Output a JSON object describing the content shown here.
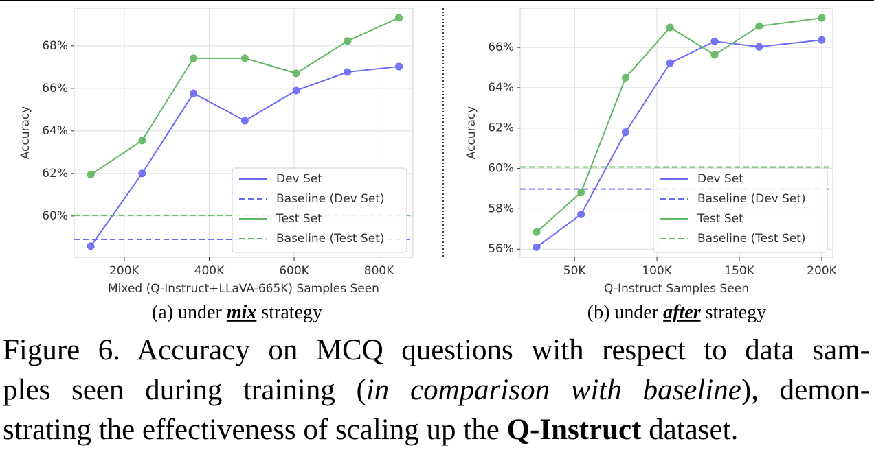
{
  "chart_data": [
    {
      "type": "line",
      "y_label": "Accuracy",
      "x_label": "Mixed (Q-Instruct+LLaVA-665K) Samples Seen",
      "x": [
        121000,
        242000,
        363000,
        484000,
        605000,
        726000,
        847000
      ],
      "xlim": [
        82000,
        880000
      ],
      "xticks": [
        {
          "value": 200000,
          "label": "200K"
        },
        {
          "value": 400000,
          "label": "400K"
        },
        {
          "value": 600000,
          "label": "600K"
        },
        {
          "value": 800000,
          "label": "800K"
        }
      ],
      "ylim": [
        58.06,
        69.77
      ],
      "yticks": [
        {
          "value": 60,
          "label": "60%"
        },
        {
          "value": 62,
          "label": "62%"
        },
        {
          "value": 64,
          "label": "64%"
        },
        {
          "value": 66,
          "label": "66%"
        },
        {
          "value": 68,
          "label": "68%"
        }
      ],
      "grid": true,
      "legend": "lower right",
      "series": [
        {
          "name": "Dev Set",
          "color": "#6b6bf2",
          "style": "solid",
          "values": [
            58.58,
            62.0,
            65.77,
            64.48,
            65.9,
            66.77,
            67.03
          ]
        },
        {
          "name": "Baseline (Dev Set)",
          "color": "#6b6bf2",
          "style": "dashed",
          "value": 58.9
        },
        {
          "name": "Test Set",
          "color": "#62b862",
          "style": "solid",
          "values": [
            61.94,
            63.55,
            67.42,
            67.42,
            66.71,
            68.23,
            69.32
          ]
        },
        {
          "name": "Baseline (Test Set)",
          "color": "#62b862",
          "style": "dashed",
          "value": 60.03
        }
      ]
    },
    {
      "type": "line",
      "y_label": "Accuracy",
      "x_label": "Q-Instruct Samples Seen",
      "x": [
        27000,
        54000,
        81000,
        108000,
        135000,
        162000,
        200000
      ],
      "xlim": [
        17000,
        206700
      ],
      "xticks": [
        {
          "value": 50000,
          "label": "50K"
        },
        {
          "value": 100000,
          "label": "100K"
        },
        {
          "value": 150000,
          "label": "150K"
        },
        {
          "value": 200000,
          "label": "200K"
        }
      ],
      "ylim": [
        55.6,
        67.94
      ],
      "yticks": [
        {
          "value": 56,
          "label": "56%"
        },
        {
          "value": 58,
          "label": "58%"
        },
        {
          "value": 60,
          "label": "60%"
        },
        {
          "value": 62,
          "label": "62%"
        },
        {
          "value": 64,
          "label": "64%"
        },
        {
          "value": 66,
          "label": "66%"
        }
      ],
      "grid": true,
      "legend": "lower right",
      "series": [
        {
          "name": "Dev Set",
          "color": "#6b6bf2",
          "style": "solid",
          "values": [
            56.1,
            57.73,
            61.8,
            65.22,
            66.3,
            66.03,
            66.37
          ]
        },
        {
          "name": "Baseline (Dev Set)",
          "color": "#6b6bf2",
          "style": "dashed",
          "value": 58.98
        },
        {
          "name": "Test Set",
          "color": "#62b862",
          "style": "solid",
          "values": [
            56.85,
            58.82,
            64.5,
            66.99,
            65.63,
            67.05,
            67.46
          ]
        },
        {
          "name": "Baseline (Test Set)",
          "color": "#62b862",
          "style": "dashed",
          "value": 60.07
        }
      ]
    }
  ],
  "subcaptions": [
    [
      {
        "text": "(a) under ",
        "style": "normal"
      },
      {
        "text": "mix",
        "style": "bold-italic-underline"
      },
      {
        "text": " strategy",
        "style": "normal"
      }
    ],
    [
      {
        "text": "(b) under ",
        "style": "normal"
      },
      {
        "text": "after",
        "style": "bold-italic-underline"
      },
      {
        "text": " strategy",
        "style": "normal"
      }
    ]
  ],
  "caption": [
    [
      {
        "text": "Figure 6.  Accuracy on MCQ questions with respect to data sam-",
        "style": "normal"
      }
    ],
    [
      {
        "text": "ples seen during training (",
        "style": "normal"
      },
      {
        "text": "in comparison with baseline",
        "style": "italic"
      },
      {
        "text": "), demon-",
        "style": "normal"
      }
    ],
    [
      {
        "text": "strating the effectiveness of scaling up the ",
        "style": "normal"
      },
      {
        "text": "Q-Instruct",
        "style": "bold"
      },
      {
        "text": " dataset.",
        "style": "normal"
      }
    ]
  ]
}
